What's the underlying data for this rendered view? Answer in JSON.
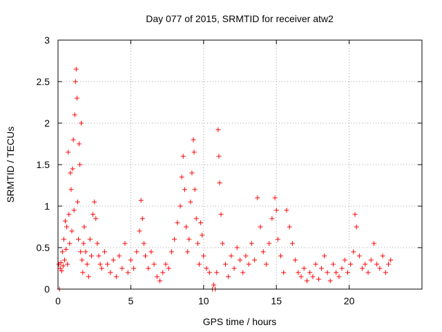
{
  "chart_data": {
    "type": "scatter",
    "title": "Day 077 of 2015, SRMTID for receiver atw2",
    "xlabel": "GPS time / hours",
    "ylabel": "SRMTID / TECUs",
    "xlim": [
      0,
      25
    ],
    "ylim": [
      0,
      3
    ],
    "x_ticks": [
      0,
      5,
      10,
      15,
      20
    ],
    "x_tick_labels": [
      "0",
      "5",
      "10",
      "15",
      "20"
    ],
    "y_ticks": [
      0,
      0.5,
      1,
      1.5,
      2,
      2.5,
      3
    ],
    "y_tick_labels": [
      "0",
      "0.5",
      "1",
      "1.5",
      "2",
      "2.5",
      "3"
    ],
    "grid": true,
    "marker": "+",
    "series": [
      {
        "name": "SRMTID",
        "color": "#ff0000",
        "points": [
          [
            0.05,
            0.3
          ],
          [
            0.1,
            0.0
          ],
          [
            0.15,
            0.25
          ],
          [
            0.2,
            0.32
          ],
          [
            0.25,
            0.22
          ],
          [
            0.3,
            0.45
          ],
          [
            0.35,
            0.28
          ],
          [
            0.4,
            0.6
          ],
          [
            0.45,
            0.35
          ],
          [
            0.5,
            0.82
          ],
          [
            0.55,
            0.48
          ],
          [
            0.6,
            0.75
          ],
          [
            0.65,
            0.3
          ],
          [
            0.7,
            1.65
          ],
          [
            0.75,
            0.9
          ],
          [
            0.8,
            0.55
          ],
          [
            0.85,
            1.4
          ],
          [
            0.9,
            1.2
          ],
          [
            0.95,
            0.7
          ],
          [
            1.0,
            1.45
          ],
          [
            1.05,
            1.8
          ],
          [
            1.1,
            0.95
          ],
          [
            1.15,
            2.1
          ],
          [
            1.2,
            2.5
          ],
          [
            1.25,
            2.65
          ],
          [
            1.3,
            2.3
          ],
          [
            1.35,
            1.05
          ],
          [
            1.4,
            0.6
          ],
          [
            1.45,
            1.75
          ],
          [
            1.5,
            1.5
          ],
          [
            1.55,
            0.45
          ],
          [
            1.6,
            2.0
          ],
          [
            1.65,
            0.35
          ],
          [
            1.7,
            0.2
          ],
          [
            1.75,
            0.55
          ],
          [
            1.8,
            0.75
          ],
          [
            1.9,
            0.45
          ],
          [
            2.0,
            0.3
          ],
          [
            2.1,
            0.15
          ],
          [
            2.2,
            0.6
          ],
          [
            2.3,
            0.4
          ],
          [
            2.4,
            0.9
          ],
          [
            2.5,
            1.05
          ],
          [
            2.6,
            0.85
          ],
          [
            2.7,
            0.55
          ],
          [
            2.8,
            0.4
          ],
          [
            2.9,
            0.3
          ],
          [
            3.0,
            0.25
          ],
          [
            3.2,
            0.45
          ],
          [
            3.4,
            0.3
          ],
          [
            3.6,
            0.2
          ],
          [
            3.8,
            0.35
          ],
          [
            4.0,
            0.15
          ],
          [
            4.2,
            0.4
          ],
          [
            4.4,
            0.25
          ],
          [
            4.6,
            0.55
          ],
          [
            4.8,
            0.2
          ],
          [
            5.0,
            0.35
          ],
          [
            5.2,
            0.25
          ],
          [
            5.4,
            0.45
          ],
          [
            5.6,
            0.7
          ],
          [
            5.7,
            1.07
          ],
          [
            5.8,
            0.85
          ],
          [
            5.9,
            0.55
          ],
          [
            6.0,
            0.4
          ],
          [
            6.2,
            0.25
          ],
          [
            6.4,
            0.45
          ],
          [
            6.6,
            0.3
          ],
          [
            6.8,
            0.15
          ],
          [
            7.0,
            0.1
          ],
          [
            7.2,
            0.2
          ],
          [
            7.4,
            0.3
          ],
          [
            7.6,
            0.25
          ],
          [
            7.8,
            0.45
          ],
          [
            8.0,
            0.6
          ],
          [
            8.2,
            0.8
          ],
          [
            8.4,
            1.0
          ],
          [
            8.5,
            1.35
          ],
          [
            8.6,
            1.6
          ],
          [
            8.7,
            1.2
          ],
          [
            8.8,
            0.75
          ],
          [
            8.9,
            0.45
          ],
          [
            9.0,
            0.6
          ],
          [
            9.1,
            1.05
          ],
          [
            9.2,
            1.4
          ],
          [
            9.3,
            1.8
          ],
          [
            9.35,
            1.65
          ],
          [
            9.4,
            1.2
          ],
          [
            9.5,
            0.85
          ],
          [
            9.6,
            0.55
          ],
          [
            9.7,
            0.3
          ],
          [
            9.8,
            0.8
          ],
          [
            9.9,
            0.65
          ],
          [
            10.0,
            0.4
          ],
          [
            10.2,
            0.25
          ],
          [
            10.4,
            0.2
          ],
          [
            10.6,
            0.0
          ],
          [
            10.7,
            0.05
          ],
          [
            10.8,
            0.0
          ],
          [
            10.9,
            0.2
          ],
          [
            11.0,
            1.92
          ],
          [
            11.05,
            1.6
          ],
          [
            11.1,
            1.28
          ],
          [
            11.2,
            0.9
          ],
          [
            11.3,
            0.55
          ],
          [
            11.5,
            0.3
          ],
          [
            11.7,
            0.15
          ],
          [
            11.9,
            0.4
          ],
          [
            12.1,
            0.25
          ],
          [
            12.3,
            0.5
          ],
          [
            12.5,
            0.35
          ],
          [
            12.7,
            0.2
          ],
          [
            12.9,
            0.4
          ],
          [
            13.1,
            0.3
          ],
          [
            13.3,
            0.55
          ],
          [
            13.5,
            0.35
          ],
          [
            13.7,
            1.1
          ],
          [
            13.9,
            0.75
          ],
          [
            14.1,
            0.45
          ],
          [
            14.3,
            0.3
          ],
          [
            14.5,
            0.55
          ],
          [
            14.7,
            0.85
          ],
          [
            14.9,
            1.1
          ],
          [
            15.0,
            0.95
          ],
          [
            15.1,
            0.6
          ],
          [
            15.3,
            0.4
          ],
          [
            15.5,
            0.2
          ],
          [
            15.7,
            0.95
          ],
          [
            15.9,
            0.75
          ],
          [
            16.1,
            0.55
          ],
          [
            16.3,
            0.35
          ],
          [
            16.5,
            0.2
          ],
          [
            16.7,
            0.15
          ],
          [
            16.9,
            0.25
          ],
          [
            17.1,
            0.1
          ],
          [
            17.3,
            0.2
          ],
          [
            17.5,
            0.15
          ],
          [
            17.7,
            0.3
          ],
          [
            17.9,
            0.12
          ],
          [
            18.1,
            0.25
          ],
          [
            18.3,
            0.4
          ],
          [
            18.5,
            0.2
          ],
          [
            18.7,
            0.1
          ],
          [
            18.9,
            0.3
          ],
          [
            19.1,
            0.2
          ],
          [
            19.3,
            0.15
          ],
          [
            19.5,
            0.25
          ],
          [
            19.7,
            0.35
          ],
          [
            19.9,
            0.2
          ],
          [
            20.1,
            0.3
          ],
          [
            20.3,
            0.45
          ],
          [
            20.4,
            0.9
          ],
          [
            20.5,
            0.75
          ],
          [
            20.7,
            0.4
          ],
          [
            20.9,
            0.25
          ],
          [
            21.1,
            0.3
          ],
          [
            21.3,
            0.2
          ],
          [
            21.5,
            0.35
          ],
          [
            21.7,
            0.55
          ],
          [
            21.9,
            0.3
          ],
          [
            22.1,
            0.25
          ],
          [
            22.3,
            0.4
          ],
          [
            22.5,
            0.2
          ],
          [
            22.7,
            0.3
          ],
          [
            22.85,
            0.35
          ]
        ]
      }
    ]
  }
}
